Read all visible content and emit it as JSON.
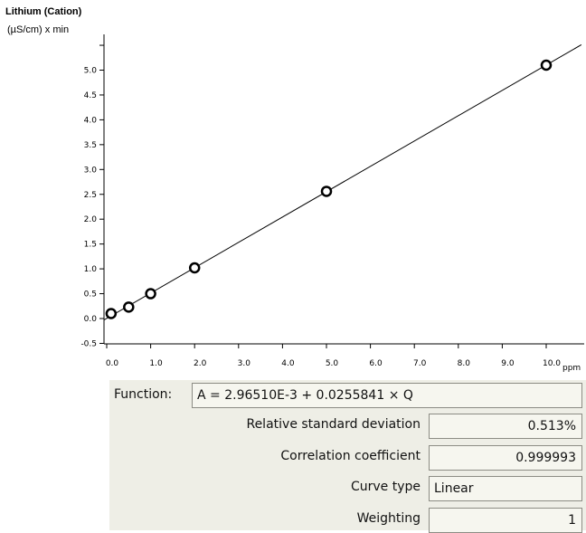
{
  "chart_data": {
    "type": "scatter",
    "title": "Lithium (Cation)",
    "ylabel": "(µS/cm) x min",
    "xlabel": "ppm",
    "xlim": [
      0.0,
      10.8
    ],
    "ylim": [
      -0.5,
      5.4
    ],
    "x_ticks": [
      "0.0",
      "1.0",
      "2.0",
      "3.0",
      "4.0",
      "5.0",
      "6.0",
      "7.0",
      "8.0",
      "9.0",
      "10.0"
    ],
    "y_ticks": [
      "5.0",
      "4.5",
      "4.0",
      "3.5",
      "3.0",
      "2.5",
      "2.0",
      "1.5",
      "1.0",
      "0.5",
      "0.0",
      "-0.5"
    ],
    "points": [
      {
        "x": 0.1,
        "y": 0.1
      },
      {
        "x": 0.5,
        "y": 0.23
      },
      {
        "x": 1.0,
        "y": 0.5
      },
      {
        "x": 2.0,
        "y": 1.02
      },
      {
        "x": 5.0,
        "y": 2.56
      },
      {
        "x": 10.0,
        "y": 5.1
      }
    ],
    "fit": {
      "intercept": 0.0029651,
      "slope": 0.0255841
    }
  },
  "results": {
    "function_label": "Function:",
    "function_value": "A = 2.96510E-3 + 0.0255841 × Q",
    "rows": [
      {
        "label": "Relative standard deviation",
        "value": "0.513%"
      },
      {
        "label": "Correlation coefficient",
        "value": "0.999993"
      },
      {
        "label": "Curve type",
        "value": "Linear"
      },
      {
        "label": "Weighting",
        "value": "1"
      }
    ]
  },
  "colors": {
    "panel_bg": "#eeeee6",
    "line": "#000000"
  }
}
